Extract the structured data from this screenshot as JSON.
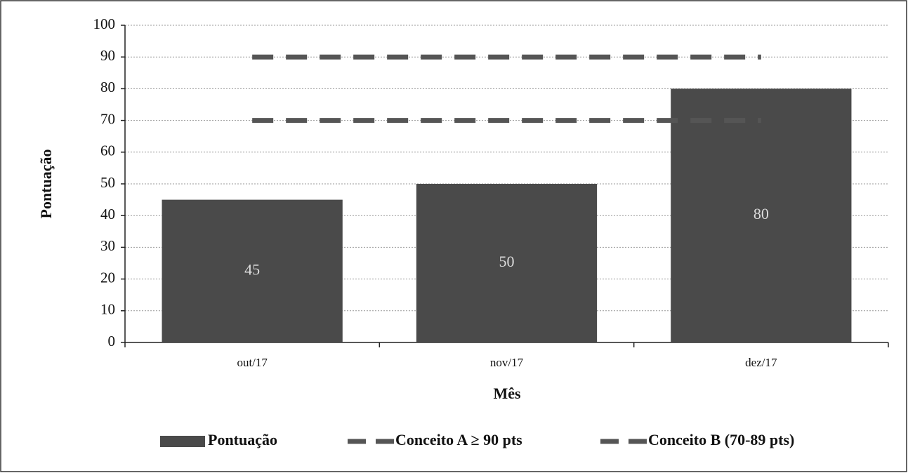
{
  "chart_data": {
    "type": "bar",
    "x_label": "Mês",
    "y_label": "Pontuação",
    "categories": [
      "out/17",
      "nov/17",
      "dez/17"
    ],
    "series": [
      {
        "name": "Pontuação",
        "type": "bar",
        "color": "#4a4a4a",
        "values": [
          45,
          50,
          80
        ]
      },
      {
        "name": "Conceito A ≥ 90 pts",
        "type": "line",
        "dashed": true,
        "color": "#555555",
        "values": [
          90,
          90,
          90
        ]
      },
      {
        "name": "Conceito B (70-89 pts)",
        "type": "line",
        "dashed": true,
        "color": "#555555",
        "values": [
          70,
          70,
          70
        ]
      }
    ],
    "ylim": [
      0,
      100
    ],
    "yticks": [
      0,
      10,
      20,
      30,
      40,
      50,
      60,
      70,
      80,
      90,
      100
    ],
    "grid": true,
    "legend": "bottom"
  }
}
